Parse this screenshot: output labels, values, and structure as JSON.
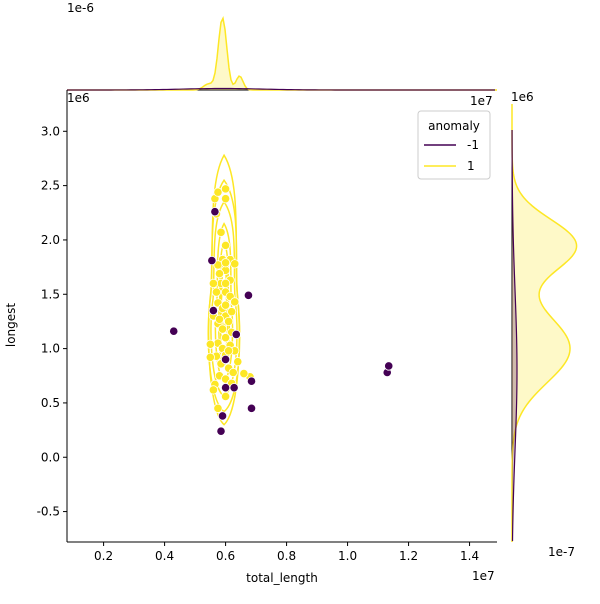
{
  "chart_data": [
    {
      "type": "scatter",
      "panel": "joint",
      "xlabel": "total_length",
      "ylabel": "longest",
      "x_multiplier": "1e7",
      "y_multiplier": "1e6",
      "x_corner_multiplier": "1e7",
      "xlim": [
        0.08,
        1.49
      ],
      "ylim": [
        -0.78,
        3.38
      ],
      "xticks": [
        "0.2",
        "0.4",
        "0.6",
        "0.8",
        "1.0",
        "1.2",
        "1.4"
      ],
      "yticks": [
        "-0.5",
        "0.0",
        "0.5",
        "1.0",
        "1.5",
        "2.0",
        "2.5",
        "3.0"
      ],
      "legend": {
        "title": "anomaly",
        "placement": "top-right",
        "entries": [
          {
            "label": "-1",
            "color": "#440154"
          },
          {
            "label": "1",
            "color": "#fde725"
          }
        ]
      },
      "series": [
        {
          "name": "-1",
          "color": "#440154",
          "points": [
            [
              0.43,
              1.16
            ],
            [
              0.555,
              1.81
            ],
            [
              0.565,
              2.26
            ],
            [
              0.56,
              1.35
            ],
            [
              0.59,
              0.38
            ],
            [
              0.585,
              0.24
            ],
            [
              0.6,
              0.64
            ],
            [
              0.6,
              0.9
            ],
            [
              0.628,
              0.64
            ],
            [
              0.635,
              1.13
            ],
            [
              0.675,
              1.49
            ],
            [
              0.685,
              0.7
            ],
            [
              0.685,
              0.45
            ],
            [
              1.13,
              0.78
            ],
            [
              1.135,
              0.84
            ]
          ]
        },
        {
          "name": "1",
          "color": "#fde725",
          "points": [
            [
              0.565,
              2.38
            ],
            [
              0.575,
              2.44
            ],
            [
              0.6,
              2.47
            ],
            [
              0.6,
              2.38
            ],
            [
              0.57,
              2.24
            ],
            [
              0.585,
              2.07
            ],
            [
              0.6,
              1.95
            ],
            [
              0.59,
              1.82
            ],
            [
              0.575,
              1.77
            ],
            [
              0.6,
              1.72
            ],
            [
              0.615,
              1.82
            ],
            [
              0.63,
              1.78
            ],
            [
              0.615,
              1.63
            ],
            [
              0.585,
              1.6
            ],
            [
              0.6,
              1.52
            ],
            [
              0.615,
              1.48
            ],
            [
              0.63,
              1.43
            ],
            [
              0.575,
              1.42
            ],
            [
              0.59,
              1.37
            ],
            [
              0.6,
              1.3
            ],
            [
              0.61,
              1.25
            ],
            [
              0.575,
              1.23
            ],
            [
              0.59,
              1.18
            ],
            [
              0.62,
              1.15
            ],
            [
              0.6,
              1.1
            ],
            [
              0.575,
              1.05
            ],
            [
              0.55,
              1.04
            ],
            [
              0.59,
              1.0
            ],
            [
              0.615,
              1.03
            ],
            [
              0.63,
              0.98
            ],
            [
              0.6,
              0.94
            ],
            [
              0.57,
              0.93
            ],
            [
              0.55,
              0.92
            ],
            [
              0.585,
              0.86
            ],
            [
              0.61,
              0.82
            ],
            [
              0.625,
              0.78
            ],
            [
              0.58,
              0.75
            ],
            [
              0.6,
              0.72
            ],
            [
              0.62,
              0.68
            ],
            [
              0.565,
              0.67
            ],
            [
              0.56,
              0.62
            ],
            [
              0.68,
              0.74
            ],
            [
              0.66,
              0.77
            ],
            [
              0.6,
              0.56
            ],
            [
              0.575,
              0.45
            ],
            [
              0.56,
              1.6
            ],
            [
              0.57,
              1.52
            ],
            [
              0.58,
              1.69
            ],
            [
              0.6,
              1.6
            ],
            [
              0.6,
              1.79
            ],
            [
              0.62,
              1.34
            ],
            [
              0.56,
              1.3
            ],
            [
              0.61,
              0.98
            ],
            [
              0.64,
              0.88
            ],
            [
              0.58,
              1.27
            ],
            [
              0.6,
              1.4
            ]
          ]
        }
      ]
    },
    {
      "type": "area",
      "panel": "top-marginal",
      "multiplier": "1e-6",
      "series": [
        {
          "name": "1",
          "color": "#fde725",
          "peak_x": 0.59,
          "peak_height": 1.0
        },
        {
          "name": "-1",
          "color": "#440154",
          "peak_x": 0.6,
          "peak_height": 0.02
        }
      ]
    },
    {
      "type": "area",
      "panel": "right-marginal",
      "multiplier_top": "1e6",
      "multiplier_bottom": "1e-7",
      "series": [
        {
          "name": "1",
          "color": "#fde725",
          "peak_y": [
            1.0,
            1.95
          ],
          "peak_height": 1.0
        },
        {
          "name": "-1",
          "color": "#440154",
          "peak_y": [
            0.8
          ],
          "peak_height": 0.1
        }
      ]
    }
  ]
}
